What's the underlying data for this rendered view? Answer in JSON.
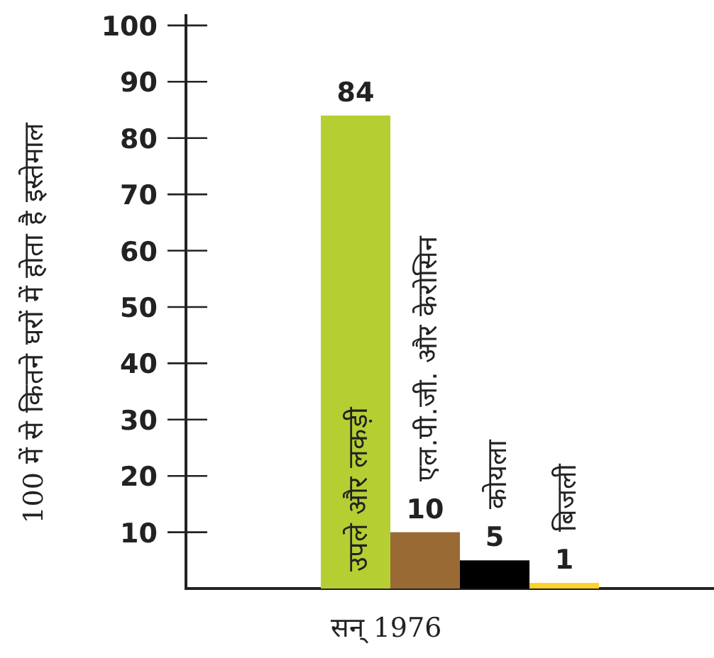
{
  "chart_data": {
    "type": "bar",
    "ylabel": "100 में से कितने घरों में होता है इस्तेमाल",
    "xlabel": "सन् 1976",
    "categories": [
      "उपले और लकड़ी",
      "एल.पी.जी. और केरोसिन",
      "कोयला",
      "बिजली"
    ],
    "values": [
      84,
      10,
      5,
      1
    ],
    "colors": [
      "#b5cf33",
      "#9a6a35",
      "#000000",
      "#fdd22b"
    ],
    "ylim": [
      0,
      102
    ],
    "yticks": [
      10,
      20,
      30,
      40,
      50,
      60,
      70,
      80,
      90,
      100
    ],
    "data_labels": true,
    "grid": false
  }
}
